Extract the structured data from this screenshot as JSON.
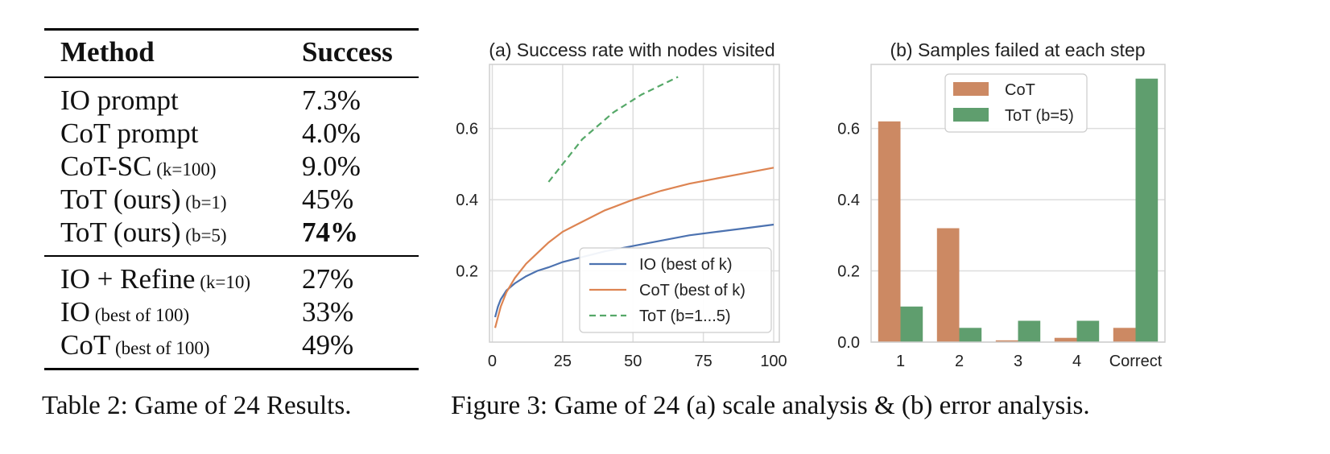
{
  "table": {
    "headers": [
      "Method",
      "Success"
    ],
    "group1": [
      {
        "method": "IO prompt",
        "param": "",
        "value": "7.3%",
        "bold": false
      },
      {
        "method": "CoT prompt",
        "param": "",
        "value": "4.0%",
        "bold": false
      },
      {
        "method": "CoT-SC",
        "param": "(k=100)",
        "value": "9.0%",
        "bold": false
      },
      {
        "method": "ToT (ours)",
        "param": "(b=1)",
        "value": "45%",
        "bold": false
      },
      {
        "method": "ToT (ours)",
        "param": "(b=5)",
        "value": "74%",
        "bold": true
      }
    ],
    "group2": [
      {
        "method": "IO + Refine",
        "param": "(k=10)",
        "value": "27%",
        "bold": false
      },
      {
        "method": "IO",
        "param": "(best of 100)",
        "value": "33%",
        "bold": false
      },
      {
        "method": "CoT",
        "param": "(best of 100)",
        "value": "49%",
        "bold": false
      }
    ],
    "caption": "Table 2: Game of 24 Results."
  },
  "figure_caption": "Figure 3: Game of 24 (a) scale analysis & (b) error analysis.",
  "chart_data": [
    {
      "type": "line",
      "title": "(a) Success rate with nodes visited",
      "xlabel": "",
      "ylabel": "",
      "xlim": [
        -1,
        102
      ],
      "ylim": [
        0,
        0.78
      ],
      "xticks": [
        0,
        25,
        50,
        75,
        100
      ],
      "yticks": [
        0.2,
        0.4,
        0.6
      ],
      "grid": true,
      "legend_position": "lower-right",
      "series": [
        {
          "name": "IO (best of k)",
          "color": "#4C72B0",
          "style": "solid",
          "x": [
            1,
            2,
            3,
            5,
            8,
            12,
            16,
            20,
            25,
            30,
            40,
            50,
            60,
            70,
            80,
            90,
            100
          ],
          "y": [
            0.07,
            0.1,
            0.12,
            0.145,
            0.165,
            0.185,
            0.2,
            0.21,
            0.225,
            0.235,
            0.255,
            0.27,
            0.285,
            0.3,
            0.31,
            0.32,
            0.33
          ]
        },
        {
          "name": "CoT (best of k)",
          "color": "#DD8452",
          "style": "solid",
          "x": [
            1,
            2,
            3,
            5,
            8,
            12,
            16,
            20,
            25,
            30,
            40,
            50,
            60,
            70,
            80,
            90,
            100
          ],
          "y": [
            0.04,
            0.07,
            0.1,
            0.14,
            0.18,
            0.22,
            0.25,
            0.28,
            0.31,
            0.33,
            0.37,
            0.4,
            0.425,
            0.445,
            0.46,
            0.475,
            0.49
          ]
        },
        {
          "name": "ToT (b=1...5)",
          "color": "#55A868",
          "style": "dashed",
          "x": [
            20,
            26,
            32,
            43,
            53,
            66
          ],
          "y": [
            0.45,
            0.51,
            0.57,
            0.645,
            0.695,
            0.745
          ]
        }
      ]
    },
    {
      "type": "bar",
      "title": "(b) Samples failed at each step",
      "xlabel": "",
      "ylabel": "",
      "categories": [
        "1",
        "2",
        "3",
        "4",
        "Correct"
      ],
      "ylim": [
        0,
        0.78
      ],
      "yticks": [
        0.0,
        0.2,
        0.4,
        0.6
      ],
      "grid": true,
      "legend_position": "top-center",
      "series": [
        {
          "name": "CoT",
          "color": "#CC8963",
          "values": [
            0.62,
            0.32,
            0.005,
            0.012,
            0.04
          ]
        },
        {
          "name": "ToT (b=5)",
          "color": "#5F9E6E",
          "values": [
            0.1,
            0.04,
            0.06,
            0.06,
            0.74
          ]
        }
      ]
    }
  ]
}
